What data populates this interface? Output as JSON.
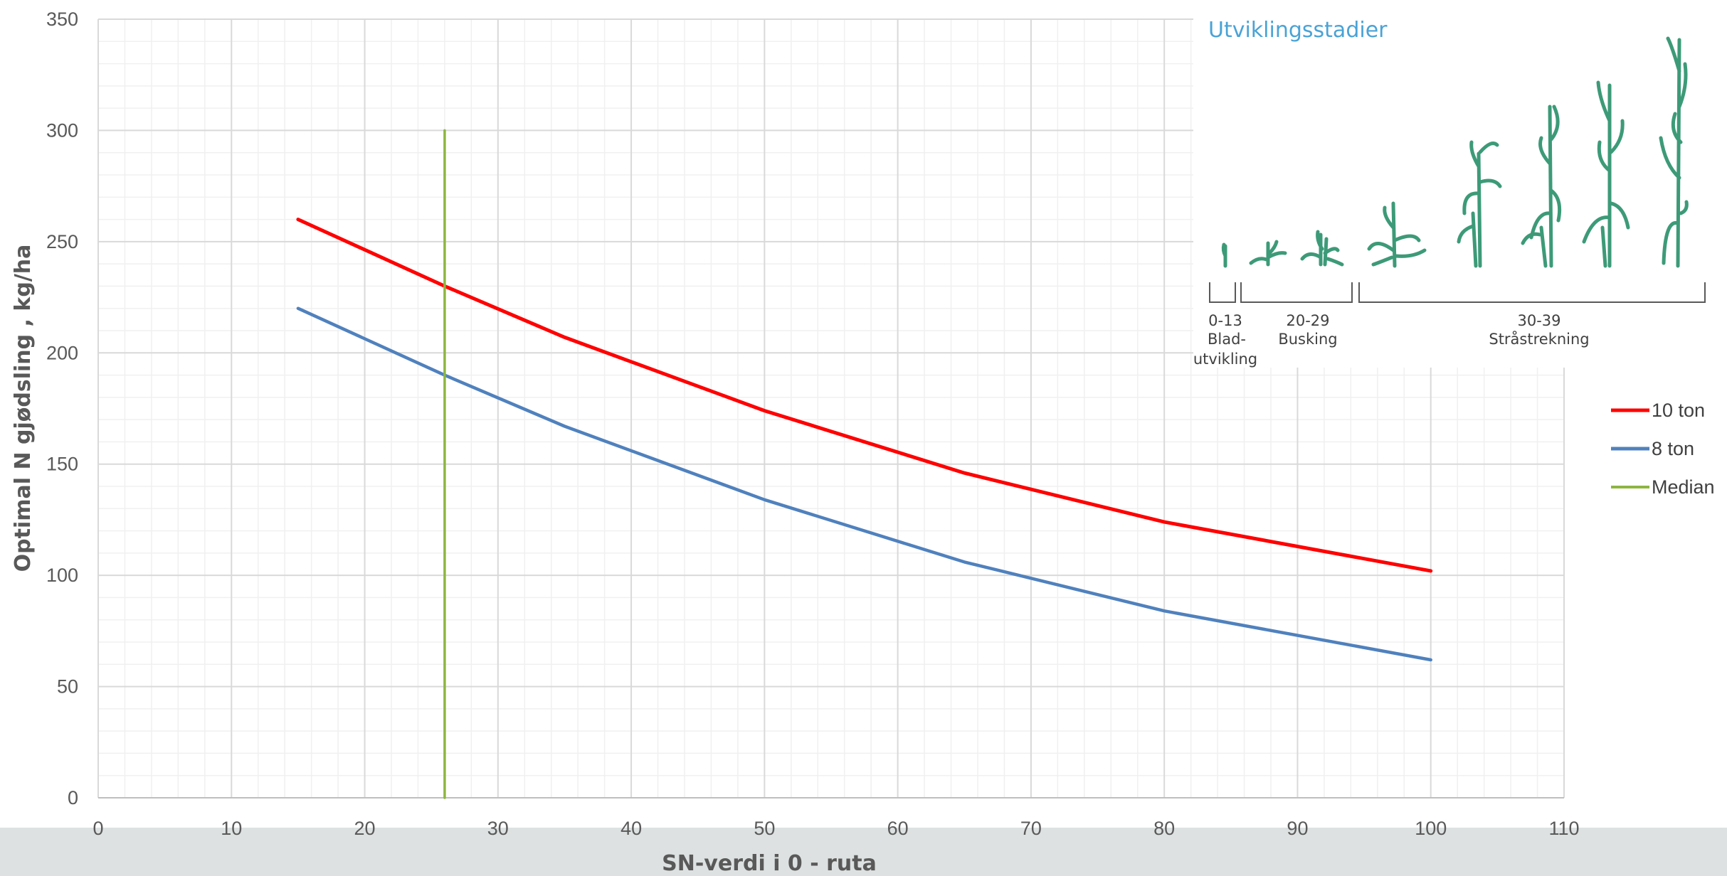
{
  "chart_data": {
    "type": "line",
    "xlabel": "SN-verdi i 0 - ruta",
    "ylabel": "Optimal N gjødsling , kg/ha",
    "xlim": [
      0,
      110
    ],
    "ylim": [
      0,
      350
    ],
    "x_ticks": [
      0,
      10,
      20,
      30,
      40,
      50,
      60,
      70,
      80,
      90,
      100,
      110
    ],
    "y_ticks": [
      0,
      50,
      100,
      150,
      200,
      250,
      300,
      350
    ],
    "grid": true,
    "legend_position": "right",
    "series": [
      {
        "name": "10 ton",
        "color": "#ff0000",
        "points": [
          [
            15,
            260
          ],
          [
            26,
            230
          ],
          [
            35,
            207
          ],
          [
            50,
            174
          ],
          [
            65,
            146
          ],
          [
            80,
            124
          ],
          [
            100,
            102
          ]
        ]
      },
      {
        "name": "8 ton",
        "color": "#4f81bd",
        "points": [
          [
            15,
            220
          ],
          [
            26,
            190
          ],
          [
            35,
            167
          ],
          [
            50,
            134
          ],
          [
            65,
            106
          ],
          [
            80,
            84
          ],
          [
            100,
            62
          ]
        ]
      },
      {
        "name": "Median",
        "color": "#8db640",
        "points": [
          [
            26,
            0
          ],
          [
            26,
            300
          ]
        ]
      }
    ]
  },
  "inset": {
    "title": "Utviklingsstadier",
    "plant_color": "#3d9a78",
    "stages": [
      {
        "range": "0-13",
        "label_line1": "Blad-",
        "label_line2": "utvikling"
      },
      {
        "range": "20-29",
        "label_line1": "Busking",
        "label_line2": ""
      },
      {
        "range": "30-39",
        "label_line1": "Stråstrekning",
        "label_line2": ""
      }
    ]
  }
}
